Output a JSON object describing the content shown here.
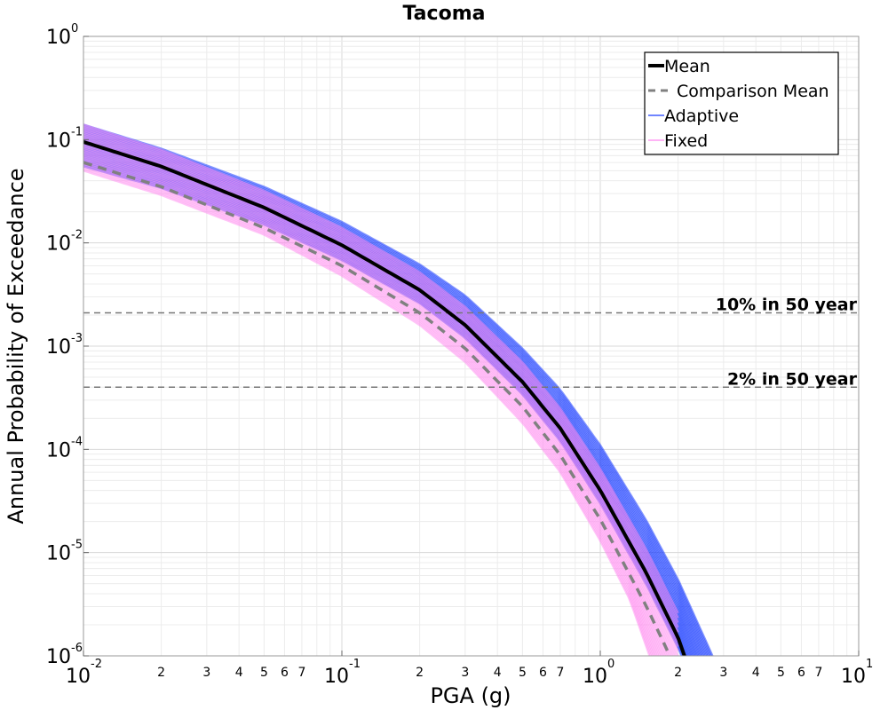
{
  "chart_data": {
    "type": "line",
    "title": "Tacoma",
    "xlabel": "PGA (g)",
    "ylabel": "Annual Probability of Exceedance",
    "x_scale": "log",
    "y_scale": "log",
    "xlim": [
      0.01,
      10
    ],
    "ylim": [
      1e-06,
      1
    ],
    "x_major_ticks": [
      {
        "base": "10",
        "exp": "-2",
        "value": 0.01
      },
      {
        "base": "10",
        "exp": "-1",
        "value": 0.1
      },
      {
        "base": "10",
        "exp": "0",
        "value": 1
      },
      {
        "base": "10",
        "exp": "1",
        "value": 10
      }
    ],
    "y_major_ticks": [
      {
        "base": "10",
        "exp": "0",
        "value": 1
      },
      {
        "base": "10",
        "exp": "-1",
        "value": 0.1
      },
      {
        "base": "10",
        "exp": "-2",
        "value": 0.01
      },
      {
        "base": "10",
        "exp": "-3",
        "value": 0.001
      },
      {
        "base": "10",
        "exp": "-4",
        "value": 0.0001
      },
      {
        "base": "10",
        "exp": "-5",
        "value": 1e-05
      },
      {
        "base": "10",
        "exp": "-6",
        "value": 1e-06
      }
    ],
    "x_minor_tick_labels": [
      "2",
      "3",
      "4",
      "5",
      "6",
      "7"
    ],
    "grid": true,
    "legend": {
      "placement": "top-right",
      "entries": [
        {
          "label": "Mean",
          "color": "#000000",
          "style": "solid-thick"
        },
        {
          "label": "Comparison Mean",
          "color": "#808080",
          "style": "dashed"
        },
        {
          "label": "Adaptive",
          "color": "#1a3cff",
          "style": "solid-thin"
        },
        {
          "label": "Fixed",
          "color": "#ff88f0",
          "style": "solid-thin"
        }
      ]
    },
    "reference_lines": [
      {
        "label": "10% in 50 year",
        "y": 0.0021
      },
      {
        "label": "2% in 50 year",
        "y": 0.0004
      }
    ],
    "series": [
      {
        "name": "Mean",
        "color": "#000000",
        "x": [
          0.01,
          0.02,
          0.05,
          0.1,
          0.2,
          0.3,
          0.5,
          0.7,
          1.0,
          1.5,
          2.0,
          2.3
        ],
        "y": [
          0.095,
          0.055,
          0.022,
          0.0095,
          0.0035,
          0.0016,
          0.00045,
          0.00016,
          4e-05,
          6.5e-06,
          1.5e-06,
          5.5e-07
        ]
      },
      {
        "name": "Comparison Mean",
        "color": "#808080",
        "x": [
          0.01,
          0.02,
          0.05,
          0.1,
          0.2,
          0.3,
          0.5,
          0.7,
          1.0,
          1.5,
          2.0
        ],
        "y": [
          0.06,
          0.035,
          0.014,
          0.006,
          0.0021,
          0.00095,
          0.00026,
          8.8e-05,
          2.1e-05,
          3.1e-06,
          6.8e-07
        ]
      },
      {
        "name": "Adaptive",
        "color": "#1a3cff",
        "band_upper": {
          "x": [
            0.01,
            0.02,
            0.05,
            0.1,
            0.2,
            0.3,
            0.5,
            0.7,
            1.0,
            1.5,
            2.0,
            2.5,
            2.8
          ],
          "y": [
            0.14,
            0.082,
            0.035,
            0.016,
            0.0062,
            0.0031,
            0.00095,
            0.00038,
            0.00011,
            2.1e-05,
            5.5e-06,
            1.6e-06,
            8.5e-07
          ]
        },
        "band_lower": {
          "x": [
            0.01,
            0.02,
            0.05,
            0.1,
            0.2,
            0.3,
            0.5,
            0.7,
            1.0,
            1.5,
            2.0,
            2.3
          ],
          "y": [
            0.055,
            0.034,
            0.015,
            0.0068,
            0.0026,
            0.0012,
            0.00034,
            0.00012,
            3e-05,
            5e-06,
            1.2e-06,
            5e-07
          ]
        }
      },
      {
        "name": "Fixed",
        "color": "#ff88f0",
        "band_upper": {
          "x": [
            0.01,
            0.02,
            0.05,
            0.1,
            0.2,
            0.3,
            0.5,
            0.7,
            1.0,
            1.5,
            2.0
          ],
          "y": [
            0.14,
            0.08,
            0.032,
            0.014,
            0.0052,
            0.0024,
            0.0007,
            0.00025,
            6.5e-05,
            1.1e-05,
            2.6e-06
          ]
        },
        "band_lower": {
          "x": [
            0.01,
            0.02,
            0.05,
            0.1,
            0.2,
            0.3,
            0.5,
            0.7,
            1.0,
            1.3,
            1.55
          ],
          "y": [
            0.05,
            0.029,
            0.012,
            0.0048,
            0.0016,
            0.0007,
            0.00018,
            6e-05,
            1.3e-05,
            3.5e-06,
            1e-06
          ]
        }
      }
    ]
  }
}
